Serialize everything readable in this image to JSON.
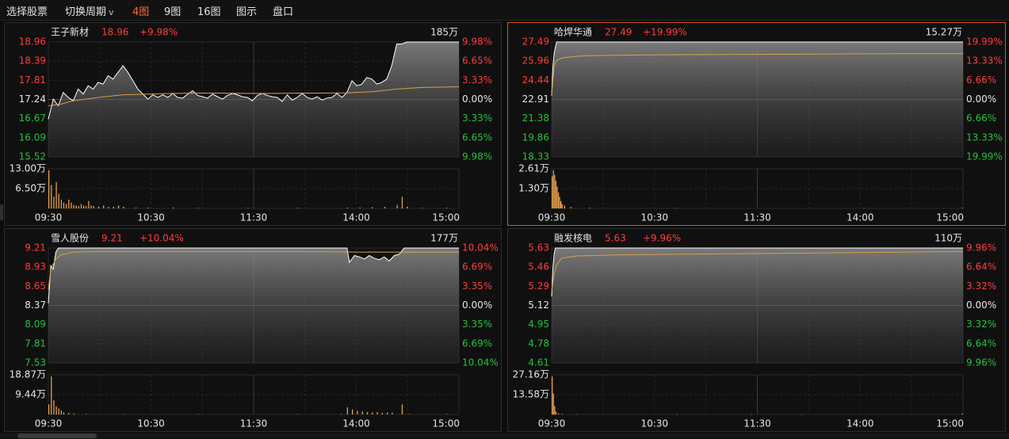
{
  "toolbar": {
    "items": [
      {
        "label": "选择股票"
      },
      {
        "label": "切换周期",
        "chevron": "v"
      },
      {
        "label": "4图",
        "active": true
      },
      {
        "label": "9图"
      },
      {
        "label": "16图"
      },
      {
        "label": "图示"
      },
      {
        "label": "盘口"
      }
    ]
  },
  "colors": {
    "up": "#ff3b3b",
    "down": "#22c13c",
    "flat": "#e6e6e6",
    "price_line": "#ffffff",
    "avg_line": "#d9a04a",
    "volume": "#e6a04a",
    "selected_border": "#d5562c",
    "active_tab": "#ff6a2b"
  },
  "time_axis": [
    "09:30",
    "10:30",
    "11:30",
    "14:00",
    "15:00"
  ],
  "panels": [
    {
      "name": "王子新材",
      "price": "18.96",
      "change": "+9.98%",
      "volume_total": "185万",
      "selected": false,
      "price_labels": [
        "18.96",
        "18.39",
        "17.81",
        "17.24",
        "16.67",
        "16.09",
        "15.52"
      ],
      "pct_labels": [
        "9.98%",
        "6.65%",
        "3.33%",
        "0.00%",
        "3.33%",
        "6.65%",
        "9.98%"
      ],
      "vol_labels": [
        "13.00万",
        "6.50万"
      ],
      "chart_data": {
        "type": "line",
        "price_range": [
          15.52,
          18.96
        ],
        "price": [
          [
            0,
            16.65
          ],
          [
            4,
            17.25
          ],
          [
            8,
            17.05
          ],
          [
            12,
            17.45
          ],
          [
            16,
            17.3
          ],
          [
            20,
            17.2
          ],
          [
            24,
            17.55
          ],
          [
            28,
            17.4
          ],
          [
            32,
            17.65
          ],
          [
            36,
            17.55
          ],
          [
            40,
            17.75
          ],
          [
            44,
            17.7
          ],
          [
            48,
            17.95
          ],
          [
            52,
            17.85
          ],
          [
            56,
            18.05
          ],
          [
            60,
            18.25
          ],
          [
            64,
            18.05
          ],
          [
            68,
            17.8
          ],
          [
            72,
            17.55
          ],
          [
            76,
            17.4
          ],
          [
            80,
            17.25
          ],
          [
            84,
            17.38
          ],
          [
            88,
            17.3
          ],
          [
            92,
            17.38
          ],
          [
            96,
            17.3
          ],
          [
            100,
            17.42
          ],
          [
            104,
            17.3
          ],
          [
            108,
            17.28
          ],
          [
            112,
            17.4
          ],
          [
            116,
            17.5
          ],
          [
            120,
            17.36
          ],
          [
            124,
            17.32
          ],
          [
            128,
            17.28
          ],
          [
            132,
            17.4
          ],
          [
            136,
            17.32
          ],
          [
            140,
            17.25
          ],
          [
            144,
            17.36
          ],
          [
            148,
            17.42
          ],
          [
            152,
            17.38
          ],
          [
            156,
            17.32
          ],
          [
            160,
            17.3
          ],
          [
            164,
            17.2
          ],
          [
            168,
            17.36
          ],
          [
            172,
            17.42
          ],
          [
            176,
            17.36
          ],
          [
            180,
            17.32
          ],
          [
            184,
            17.3
          ],
          [
            188,
            17.18
          ],
          [
            192,
            17.38
          ],
          [
            196,
            17.22
          ],
          [
            200,
            17.3
          ],
          [
            204,
            17.42
          ],
          [
            208,
            17.3
          ],
          [
            212,
            17.25
          ],
          [
            216,
            17.32
          ],
          [
            220,
            17.22
          ],
          [
            224,
            17.28
          ],
          [
            228,
            17.3
          ],
          [
            232,
            17.42
          ],
          [
            236,
            17.3
          ],
          [
            240,
            17.45
          ],
          [
            244,
            17.8
          ],
          [
            248,
            17.65
          ],
          [
            252,
            17.7
          ],
          [
            256,
            17.9
          ],
          [
            260,
            17.85
          ],
          [
            264,
            17.7
          ],
          [
            268,
            17.75
          ],
          [
            272,
            17.85
          ],
          [
            276,
            18.25
          ],
          [
            280,
            18.9
          ],
          [
            284,
            18.9
          ],
          [
            288,
            18.96
          ],
          [
            300,
            18.96
          ],
          [
            310,
            18.96
          ],
          [
            320,
            18.96
          ],
          [
            330,
            18.96
          ]
        ],
        "avg": [
          [
            0,
            17.05
          ],
          [
            10,
            17.1
          ],
          [
            20,
            17.2
          ],
          [
            40,
            17.3
          ],
          [
            60,
            17.38
          ],
          [
            80,
            17.4
          ],
          [
            100,
            17.42
          ],
          [
            120,
            17.43
          ],
          [
            140,
            17.43
          ],
          [
            160,
            17.42
          ],
          [
            180,
            17.42
          ],
          [
            200,
            17.43
          ],
          [
            220,
            17.43
          ],
          [
            240,
            17.44
          ],
          [
            260,
            17.47
          ],
          [
            280,
            17.55
          ],
          [
            300,
            17.6
          ],
          [
            330,
            17.62
          ]
        ],
        "volume": [
          [
            0,
            13
          ],
          [
            2,
            8
          ],
          [
            4,
            4
          ],
          [
            6,
            9
          ],
          [
            8,
            5
          ],
          [
            10,
            3
          ],
          [
            12,
            2
          ],
          [
            14,
            1.5
          ],
          [
            16,
            3
          ],
          [
            18,
            2
          ],
          [
            20,
            1.2
          ],
          [
            22,
            1
          ],
          [
            24,
            0.8
          ],
          [
            26,
            1.5
          ],
          [
            28,
            1
          ],
          [
            30,
            0.8
          ],
          [
            32,
            2.5
          ],
          [
            34,
            1
          ],
          [
            36,
            0.8
          ],
          [
            40,
            0.6
          ],
          [
            44,
            1
          ],
          [
            48,
            0.5
          ],
          [
            52,
            0.6
          ],
          [
            56,
            1
          ],
          [
            60,
            0.6
          ],
          [
            70,
            0.3
          ],
          [
            80,
            0.3
          ],
          [
            100,
            0.3
          ],
          [
            120,
            0.2
          ],
          [
            160,
            0.2
          ],
          [
            200,
            0.2
          ],
          [
            240,
            0.3
          ],
          [
            250,
            0.3
          ],
          [
            260,
            0.4
          ],
          [
            270,
            0.5
          ],
          [
            280,
            1.2
          ],
          [
            284,
            4
          ],
          [
            288,
            0.6
          ],
          [
            300,
            0.2
          ],
          [
            320,
            0.2
          ]
        ]
      }
    },
    {
      "name": "哈焊华通",
      "price": "27.49",
      "change": "+19.99%",
      "volume_total": "15.27万",
      "selected": true,
      "price_labels": [
        "27.49",
        "25.96",
        "24.44",
        "22.91",
        "21.38",
        "19.86",
        "18.33"
      ],
      "pct_labels": [
        "19.99%",
        "13.33%",
        "6.66%",
        "0.00%",
        "6.66%",
        "13.33%",
        "19.99%"
      ],
      "vol_labels": [
        "2.61万",
        "1.30万"
      ],
      "chart_data": {
        "type": "line",
        "price_range": [
          18.33,
          27.49
        ],
        "price": [
          [
            0,
            23.2
          ],
          [
            1,
            25.5
          ],
          [
            2,
            26.6
          ],
          [
            3,
            27.1
          ],
          [
            4,
            27.49
          ],
          [
            330,
            27.49
          ]
        ],
        "avg": [
          [
            0,
            23.3
          ],
          [
            1,
            24.5
          ],
          [
            2,
            25.5
          ],
          [
            3,
            25.9
          ],
          [
            5,
            26.1
          ],
          [
            10,
            26.25
          ],
          [
            20,
            26.35
          ],
          [
            30,
            26.4
          ],
          [
            60,
            26.45
          ],
          [
            100,
            26.48
          ],
          [
            150,
            26.5
          ],
          [
            200,
            26.52
          ],
          [
            250,
            26.55
          ],
          [
            330,
            26.56
          ]
        ],
        "volume": [
          [
            0,
            2.2
          ],
          [
            1,
            2.61
          ],
          [
            2,
            2.3
          ],
          [
            3,
            1.9
          ],
          [
            4,
            1.5
          ],
          [
            5,
            1.1
          ],
          [
            6,
            0.8
          ],
          [
            7,
            0.5
          ],
          [
            8,
            0.3
          ],
          [
            10,
            0.2
          ],
          [
            15,
            0.1
          ],
          [
            30,
            0.05
          ],
          [
            100,
            0.03
          ],
          [
            250,
            0.03
          ],
          [
            329,
            0.04
          ]
        ]
      }
    },
    {
      "name": "雪人股份",
      "price": "9.21",
      "change": "+10.04%",
      "volume_total": "177万",
      "selected": false,
      "price_labels": [
        "9.21",
        "8.93",
        "8.65",
        "8.37",
        "8.09",
        "7.81",
        "7.53"
      ],
      "pct_labels": [
        "10.04%",
        "6.69%",
        "3.35%",
        "0.00%",
        "3.35%",
        "6.69%",
        "10.04%"
      ],
      "vol_labels": [
        "18.87万",
        "9.44万"
      ],
      "chart_data": {
        "type": "line",
        "price_range": [
          7.53,
          9.21
        ],
        "price": [
          [
            0,
            8.4
          ],
          [
            2,
            8.95
          ],
          [
            4,
            8.9
          ],
          [
            6,
            9.15
          ],
          [
            8,
            9.21
          ],
          [
            220,
            9.21
          ],
          [
            240,
            9.21
          ],
          [
            242,
            9.0
          ],
          [
            246,
            9.1
          ],
          [
            250,
            9.08
          ],
          [
            254,
            9.05
          ],
          [
            258,
            9.1
          ],
          [
            262,
            9.06
          ],
          [
            266,
            9.04
          ],
          [
            270,
            9.08
          ],
          [
            274,
            9.02
          ],
          [
            278,
            9.1
          ],
          [
            282,
            9.12
          ],
          [
            286,
            9.21
          ],
          [
            330,
            9.21
          ]
        ],
        "avg": [
          [
            0,
            8.6
          ],
          [
            2,
            8.9
          ],
          [
            6,
            9.05
          ],
          [
            10,
            9.11
          ],
          [
            20,
            9.15
          ],
          [
            40,
            9.16
          ],
          [
            100,
            9.16
          ],
          [
            200,
            9.16
          ],
          [
            250,
            9.15
          ],
          [
            330,
            9.15
          ]
        ],
        "volume": [
          [
            0,
            5
          ],
          [
            2,
            18.87
          ],
          [
            4,
            7
          ],
          [
            6,
            4
          ],
          [
            8,
            3
          ],
          [
            10,
            2
          ],
          [
            12,
            1
          ],
          [
            16,
            0.8
          ],
          [
            20,
            0.5
          ],
          [
            30,
            0.3
          ],
          [
            60,
            0.2
          ],
          [
            120,
            0.2
          ],
          [
            200,
            0.2
          ],
          [
            235,
            0.3
          ],
          [
            240,
            3.5
          ],
          [
            244,
            2.5
          ],
          [
            248,
            1.8
          ],
          [
            252,
            1.5
          ],
          [
            256,
            1.2
          ],
          [
            260,
            1.0
          ],
          [
            264,
            1.1
          ],
          [
            268,
            0.8
          ],
          [
            272,
            1.0
          ],
          [
            276,
            0.9
          ],
          [
            284,
            5
          ],
          [
            290,
            0.3
          ],
          [
            320,
            0.2
          ]
        ]
      }
    },
    {
      "name": "融发核电",
      "price": "5.63",
      "change": "+9.96%",
      "volume_total": "110万",
      "selected": false,
      "price_labels": [
        "5.63",
        "5.46",
        "5.29",
        "5.12",
        "4.95",
        "4.78",
        "4.61"
      ],
      "pct_labels": [
        "9.96%",
        "6.64%",
        "3.32%",
        "0.00%",
        "3.32%",
        "6.64%",
        "9.96%"
      ],
      "vol_labels": [
        "27.16万",
        "13.58万"
      ],
      "chart_data": {
        "type": "line",
        "price_range": [
          4.61,
          5.63
        ],
        "price": [
          [
            0,
            5.2
          ],
          [
            1,
            5.45
          ],
          [
            2,
            5.58
          ],
          [
            3,
            5.63
          ],
          [
            330,
            5.63
          ]
        ],
        "avg": [
          [
            0,
            5.25
          ],
          [
            2,
            5.4
          ],
          [
            4,
            5.48
          ],
          [
            8,
            5.54
          ],
          [
            20,
            5.56
          ],
          [
            60,
            5.57
          ],
          [
            150,
            5.58
          ],
          [
            250,
            5.59
          ],
          [
            330,
            5.6
          ]
        ],
        "volume": [
          [
            0,
            27.16
          ],
          [
            1,
            15
          ],
          [
            2,
            6
          ],
          [
            3,
            2
          ],
          [
            5,
            0.8
          ],
          [
            8,
            0.4
          ],
          [
            20,
            0.2
          ],
          [
            100,
            0.1
          ],
          [
            160,
            0.2
          ],
          [
            200,
            0.1
          ],
          [
            329,
            0.6
          ]
        ]
      }
    }
  ]
}
